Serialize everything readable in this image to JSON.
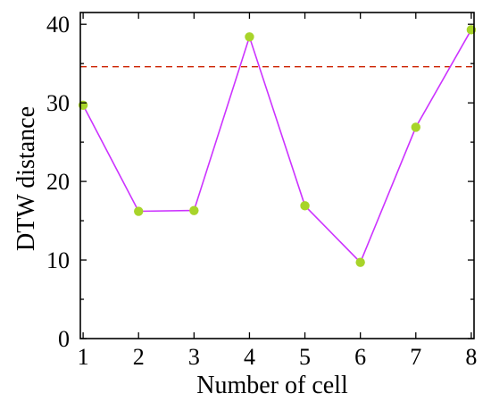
{
  "chart_data": {
    "type": "line",
    "title": "",
    "xlabel": "Number of cell",
    "ylabel": "DTW distance",
    "x": [
      1,
      2,
      3,
      4,
      5,
      6,
      7,
      8
    ],
    "xlim": [
      0.95,
      8.05
    ],
    "ylim": [
      0,
      41.5
    ],
    "xticks": [
      1,
      2,
      3,
      4,
      5,
      6,
      7,
      8
    ],
    "yticks": [
      0,
      10,
      20,
      30,
      40
    ],
    "y_minor_ticks": [
      5,
      15,
      25,
      35
    ],
    "grid": false,
    "series": [
      {
        "values": [
          29.7,
          16.2,
          16.3,
          38.4,
          16.9,
          9.7,
          26.9,
          39.3
        ],
        "line_color": "#cc33ff",
        "marker_color": "#a8d42a"
      }
    ],
    "threshold": {
      "value": 34.6,
      "color": "#cc2200",
      "style": "dashed"
    }
  }
}
